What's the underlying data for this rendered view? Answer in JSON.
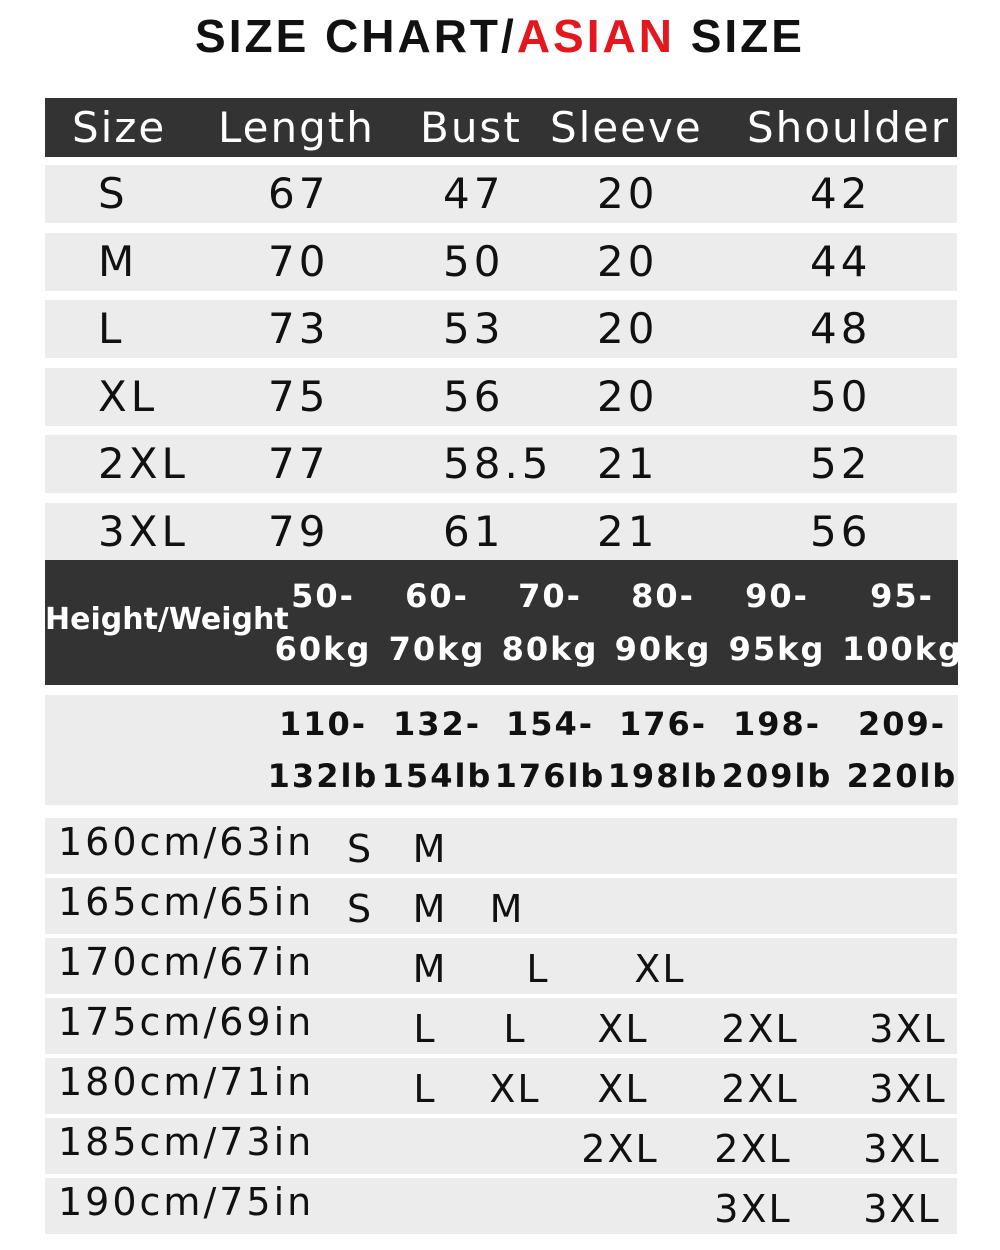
{
  "title": {
    "part1": "SIZE CHART/",
    "part2": "ASIAN",
    "part3": " SIZE",
    "accent_color": "#e4161e"
  },
  "size_table": {
    "headers": [
      "Size",
      "Length",
      "Bust",
      "Sleeve",
      "Shoulder"
    ],
    "rows": [
      [
        "S",
        "67",
        "47",
        "20",
        "42"
      ],
      [
        "M",
        "70",
        "50",
        "20",
        "44"
      ],
      [
        "L",
        "73",
        "53",
        "20",
        "48"
      ],
      [
        "XL",
        "75",
        "56",
        "20",
        "50"
      ],
      [
        "2XL",
        "77",
        "58.5",
        "21",
        "52"
      ],
      [
        "3XL",
        "79",
        "61",
        "21",
        "56"
      ]
    ]
  },
  "weight_table": {
    "label": "Height/Weight",
    "kg": [
      [
        "50-",
        "60kg"
      ],
      [
        "60-",
        "70kg"
      ],
      [
        "70-",
        "80kg"
      ],
      [
        "80-",
        "90kg"
      ],
      [
        "90-",
        "95kg"
      ],
      [
        "95-",
        "100kg"
      ]
    ],
    "lb": [
      [
        "110-",
        "132lb"
      ],
      [
        "132-",
        "154lb"
      ],
      [
        "154-",
        "176lb"
      ],
      [
        "176-",
        "198lb"
      ],
      [
        "198-",
        "209lb"
      ],
      [
        "209-",
        "220lb"
      ]
    ]
  },
  "height_table": {
    "rows": [
      {
        "height": "160cm/63in",
        "sizes": [
          "S",
          "M"
        ]
      },
      {
        "height": "165cm/65in",
        "sizes": [
          "S",
          "M",
          "M"
        ]
      },
      {
        "height": "170cm/67in",
        "sizes": [
          "M",
          "L",
          "XL"
        ]
      },
      {
        "height": "175cm/69in",
        "sizes": [
          "L",
          "L",
          "XL",
          "2XL",
          "3XL"
        ]
      },
      {
        "height": "180cm/71in",
        "sizes": [
          "L",
          "XL",
          "XL",
          "2XL",
          "3XL"
        ]
      },
      {
        "height": "185cm/73in",
        "sizes": [
          "2XL",
          "2XL",
          "3XL"
        ]
      },
      {
        "height": "190cm/75in",
        "sizes": [
          "3XL",
          "3XL"
        ]
      }
    ]
  }
}
